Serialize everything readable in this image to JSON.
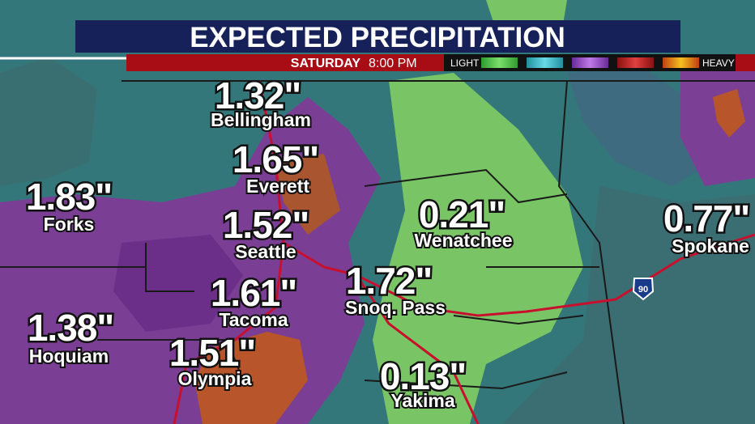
{
  "header": {
    "title": "EXPECTED PRECIPITATION",
    "day": "SATURDAY",
    "time": "8:00 PM"
  },
  "legend": {
    "low": "LIGHT",
    "high": "HEAVY"
  },
  "highway": "90",
  "cities": [
    {
      "name": "Bellingham",
      "amount": "1.32\""
    },
    {
      "name": "Everett",
      "amount": "1.65\""
    },
    {
      "name": "Forks",
      "amount": "1.83\""
    },
    {
      "name": "Seattle",
      "amount": "1.52\""
    },
    {
      "name": "Wenatchee",
      "amount": "0.21\""
    },
    {
      "name": "Spokane",
      "amount": "0.77\""
    },
    {
      "name": "Tacoma",
      "amount": "1.61\""
    },
    {
      "name": "Snoq. Pass",
      "amount": "1.72\""
    },
    {
      "name": "Hoquiam",
      "amount": "1.38\""
    },
    {
      "name": "Olympia",
      "amount": "1.51\""
    },
    {
      "name": "Yakima",
      "amount": "0.13\""
    }
  ]
}
